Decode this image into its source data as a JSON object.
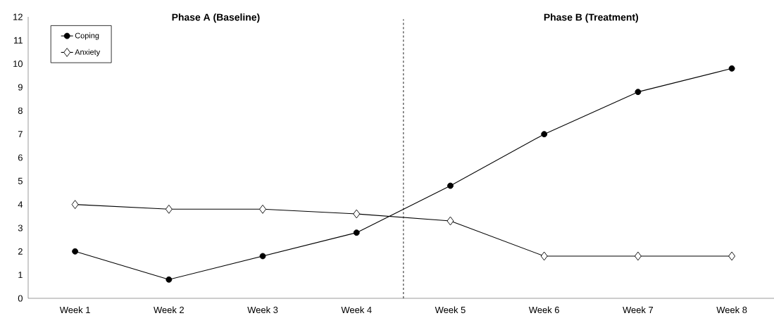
{
  "chart_data": {
    "type": "line",
    "categories": [
      "Week 1",
      "Week 2",
      "Week 3",
      "Week 4",
      "Week 5",
      "Week 6",
      "Week 7",
      "Week 8"
    ],
    "series": [
      {
        "name": "Coping",
        "color": "#000000",
        "marker": "circle",
        "values": [
          2.0,
          0.8,
          1.8,
          2.8,
          4.8,
          7.0,
          8.8,
          9.8
        ]
      },
      {
        "name": "Anxiety",
        "color": "#000000",
        "marker": "diamond",
        "values": [
          4.0,
          3.8,
          3.8,
          3.6,
          3.3,
          1.8,
          1.8,
          1.8
        ]
      }
    ],
    "ylim": [
      0,
      12
    ],
    "yticks": [
      0,
      1,
      2,
      3,
      4,
      5,
      6,
      7,
      8,
      9,
      10,
      11,
      12
    ],
    "annotations": [
      "Phase A (Baseline)",
      "Phase B (Treatment)"
    ],
    "legend": "top left",
    "grid": false,
    "line_style": "solid"
  }
}
